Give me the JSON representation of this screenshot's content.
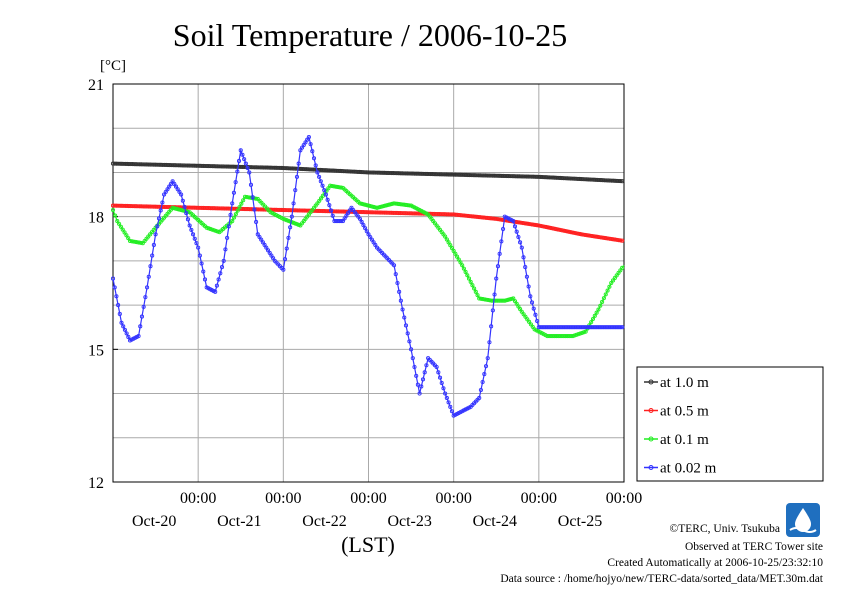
{
  "chart_data": {
    "type": "line",
    "title": "Soil Temperature / 2006-10-25",
    "ylabel": "[°C]",
    "xlabel": "(LST)",
    "ylim": [
      12,
      21
    ],
    "xlim": [
      -1.0,
      5.0
    ],
    "yticks": [
      12,
      15,
      18,
      21
    ],
    "x_ticks": [
      {
        "x": 0,
        "time": "00:00",
        "date": "Oct-20"
      },
      {
        "x": 1,
        "time": "00:00",
        "date": "Oct-21"
      },
      {
        "x": 2,
        "time": "00:00",
        "date": "Oct-22"
      },
      {
        "x": 3,
        "time": "00:00",
        "date": "Oct-23"
      },
      {
        "x": 4,
        "time": "00:00",
        "date": "Oct-24"
      },
      {
        "x": 5,
        "time": "00:00",
        "date": "Oct-25"
      }
    ],
    "grid": true,
    "legend_position": "right",
    "series": [
      {
        "name": "at 1.0 m",
        "color": "#333333",
        "x": [
          -1.0,
          0.0,
          1.0,
          2.0,
          3.0,
          4.0,
          5.0
        ],
        "y": [
          19.2,
          19.15,
          19.1,
          19.0,
          18.95,
          18.9,
          18.8
        ]
      },
      {
        "name": "at 0.5 m",
        "color": "#ff2020",
        "x": [
          -1.0,
          0.0,
          1.0,
          2.0,
          3.0,
          3.5,
          4.0,
          4.5,
          5.0
        ],
        "y": [
          18.25,
          18.2,
          18.15,
          18.1,
          18.05,
          17.95,
          17.8,
          17.6,
          17.45
        ]
      },
      {
        "name": "at 0.1 m",
        "color": "#22ee22",
        "x": [
          -1.0,
          -0.95,
          -0.8,
          -0.65,
          -0.5,
          -0.3,
          -0.1,
          0.1,
          0.25,
          0.4,
          0.55,
          0.7,
          0.85,
          1.0,
          1.2,
          1.4,
          1.55,
          1.7,
          1.9,
          2.1,
          2.3,
          2.5,
          2.7,
          2.9,
          3.1,
          3.3,
          3.45,
          3.6,
          3.7,
          3.8,
          3.95,
          4.1,
          4.25,
          4.4,
          4.55,
          4.7,
          4.85,
          5.0
        ],
        "y": [
          18.15,
          17.9,
          17.45,
          17.4,
          17.75,
          18.2,
          18.1,
          17.75,
          17.65,
          17.9,
          18.45,
          18.4,
          18.1,
          17.95,
          17.8,
          18.3,
          18.7,
          18.65,
          18.3,
          18.2,
          18.3,
          18.25,
          18.05,
          17.55,
          16.9,
          16.15,
          16.1,
          16.1,
          16.15,
          15.85,
          15.45,
          15.3,
          15.3,
          15.3,
          15.4,
          15.9,
          16.5,
          16.9
        ]
      },
      {
        "name": "at 0.02 m",
        "color": "#3333ff",
        "x": [
          -1.0,
          -0.9,
          -0.8,
          -0.7,
          -0.6,
          -0.5,
          -0.4,
          -0.3,
          -0.2,
          -0.1,
          0.0,
          0.1,
          0.2,
          0.3,
          0.4,
          0.5,
          0.6,
          0.7,
          0.8,
          0.9,
          1.0,
          1.1,
          1.2,
          1.3,
          1.4,
          1.5,
          1.6,
          1.7,
          1.8,
          1.9,
          2.0,
          2.1,
          2.2,
          2.3,
          2.4,
          2.5,
          2.6,
          2.7,
          2.8,
          2.9,
          3.0,
          3.1,
          3.2,
          3.3,
          3.4,
          3.5,
          3.6,
          3.7,
          3.8,
          3.9,
          4.0,
          4.1,
          4.2,
          4.3,
          4.4,
          4.5,
          4.6,
          4.7,
          4.8,
          4.9,
          5.0
        ],
        "y": [
          16.6,
          15.6,
          15.2,
          15.3,
          16.4,
          17.6,
          18.5,
          18.8,
          18.5,
          17.8,
          17.3,
          16.4,
          16.3,
          17.0,
          18.3,
          19.5,
          19.0,
          17.6,
          17.3,
          17.0,
          16.8,
          18.0,
          19.5,
          19.8,
          19.0,
          18.5,
          17.9,
          17.9,
          18.2,
          17.95,
          17.6,
          17.3,
          17.1,
          16.9,
          15.9,
          15.0,
          14.0,
          14.8,
          14.6,
          14.0,
          13.5,
          13.6,
          13.7,
          13.9,
          14.8,
          16.6,
          18.0,
          17.9,
          17.3,
          16.2,
          15.5,
          15.5,
          15.5,
          15.5,
          15.5,
          15.5,
          15.5,
          15.5,
          15.5,
          15.5,
          15.5
        ]
      }
    ]
  },
  "credits": {
    "copyright": "©TERC, Univ. Tsukuba",
    "observed": "Observed at TERC Tower site",
    "created": "Created Automatically at 2006-10-25/23:32:10",
    "source": "Data source : /home/hojyo/new/TERC-data/sorted_data/MET.30m.dat"
  },
  "logo": {
    "text": "TERC",
    "color": "#1f6fbf"
  }
}
